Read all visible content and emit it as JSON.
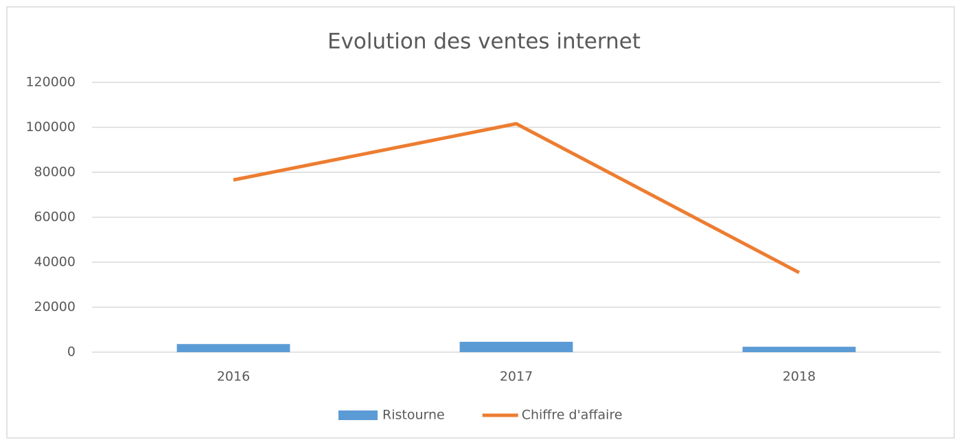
{
  "chart_data": {
    "type": "bar",
    "title": "Evolution des ventes internet",
    "categories": [
      "2016",
      "2017",
      "2018"
    ],
    "series": [
      {
        "name": "Ristourne",
        "type": "bar",
        "color": "#5b9bd5",
        "values": [
          3600,
          4600,
          2400
        ]
      },
      {
        "name": "Chiffre d'affaire",
        "type": "line",
        "color": "#ed7d31",
        "values": [
          76600,
          101600,
          35400
        ]
      }
    ],
    "ylim": [
      0,
      120000
    ],
    "yticks": [
      0,
      20000,
      40000,
      60000,
      80000,
      100000,
      120000
    ],
    "grid": true,
    "legend": "bottom"
  }
}
